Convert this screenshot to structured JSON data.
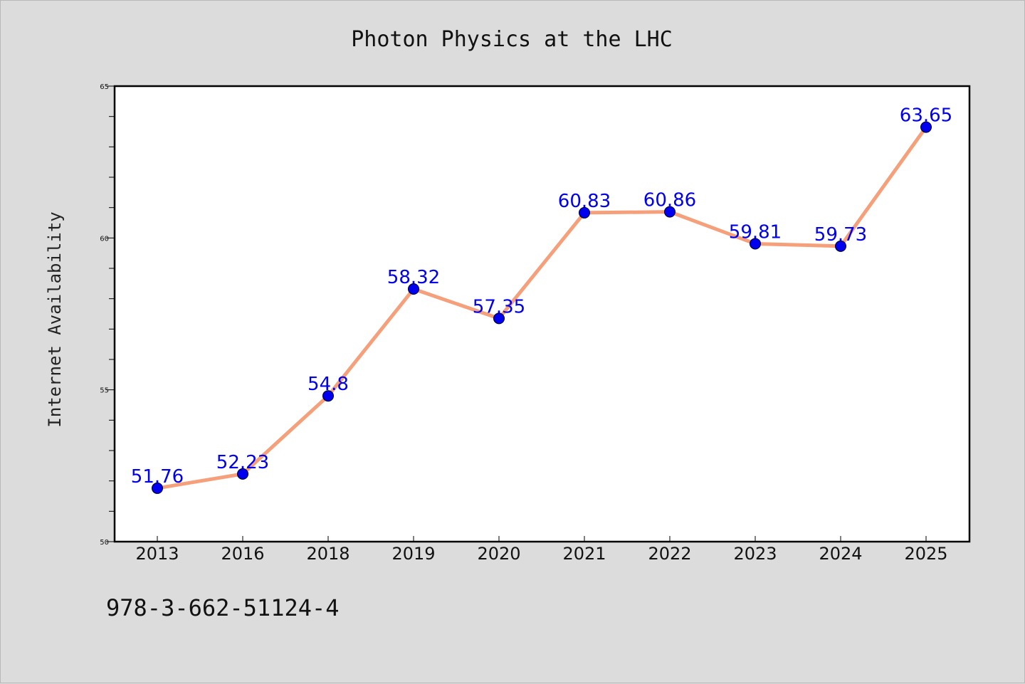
{
  "chart_data": {
    "type": "line",
    "title": "Photon Physics at the LHC",
    "xlabel": "",
    "ylabel": "Internet Availability",
    "categories": [
      "2013",
      "2016",
      "2018",
      "2019",
      "2020",
      "2021",
      "2022",
      "2023",
      "2024",
      "2025"
    ],
    "values": [
      51.76,
      52.23,
      54.8,
      58.32,
      57.35,
      60.83,
      60.86,
      59.81,
      59.73,
      63.65
    ],
    "data_labels": [
      "51.76",
      "52.23",
      "54.8",
      "58.32",
      "57.35",
      "60.83",
      "60.86",
      "59.81",
      "59.73",
      "63.65"
    ],
    "ylim": [
      50,
      65
    ],
    "yticks": [
      50,
      55,
      60,
      65
    ],
    "grid": false,
    "legend": "none",
    "line_color": "#f5a07a",
    "marker_color": "#0000ee",
    "label_color": "#0000ee"
  },
  "footer": {
    "isbn": "978-3-662-51124-4"
  }
}
